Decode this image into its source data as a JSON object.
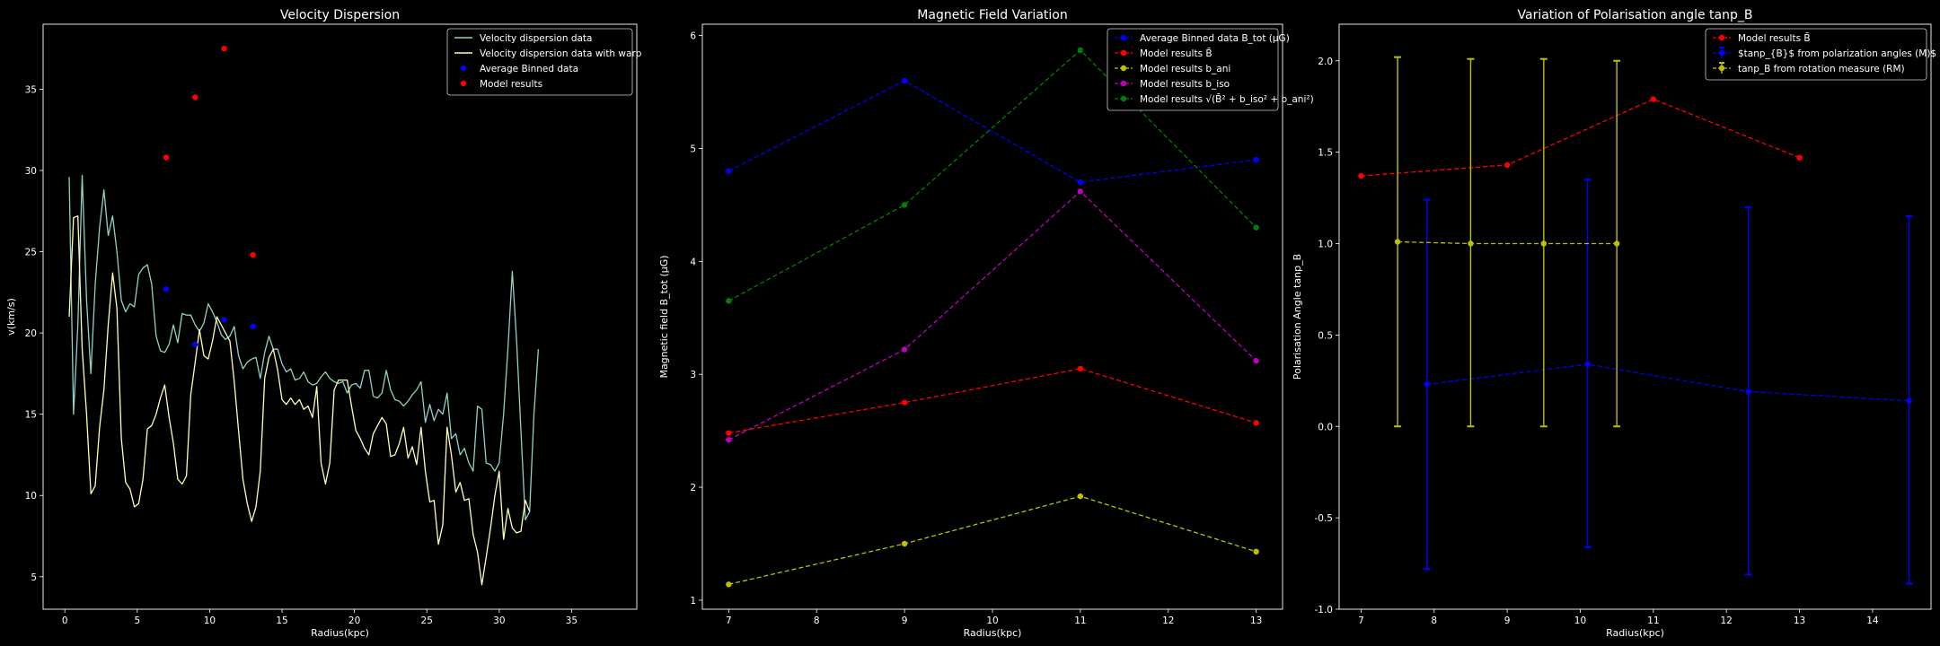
{
  "figure": {
    "background": "#000000",
    "foreground": "#ffffff"
  },
  "chart_data": [
    {
      "type": "line",
      "title": "Velocity Dispersion",
      "xlabel": "Radius(kpc)",
      "ylabel": "v(km/s)",
      "xlim": [
        -1.5,
        39.5
      ],
      "ylim": [
        3,
        39
      ],
      "xticks": [
        0,
        5,
        10,
        15,
        20,
        25,
        30,
        35
      ],
      "yticks": [
        5,
        10,
        15,
        20,
        25,
        30,
        35
      ],
      "legend_position": "top-right",
      "series": [
        {
          "name": "Velocity dispersion data",
          "kind": "line",
          "color": "#8dd3c7",
          "x": [
            0.3,
            0.6,
            0.9,
            1.2,
            1.5,
            1.8,
            2.1,
            2.4,
            2.7,
            3.0,
            3.3,
            3.6,
            3.9,
            4.2,
            4.5,
            4.8,
            5.1,
            5.4,
            5.7,
            6.0,
            6.3,
            6.6,
            6.9,
            7.2,
            7.5,
            7.8,
            8.1,
            8.4,
            8.7,
            9.0,
            9.3,
            9.6,
            9.9,
            10.2,
            10.5,
            10.8,
            11.1,
            11.4,
            11.7,
            12.0,
            12.3,
            12.6,
            12.9,
            13.2,
            13.5,
            13.8,
            14.1,
            14.4,
            14.7,
            15.0,
            15.3,
            15.6,
            15.9,
            16.2,
            16.5,
            16.8,
            17.1,
            17.4,
            17.7,
            18.0,
            18.3,
            18.6,
            18.9,
            19.2,
            19.5,
            19.8,
            20.1,
            20.4,
            20.7,
            21.0,
            21.3,
            21.6,
            21.9,
            22.2,
            22.5,
            22.8,
            23.1,
            23.4,
            23.7,
            24.0,
            24.3,
            24.6,
            24.9,
            25.2,
            25.5,
            25.8,
            26.1,
            26.4,
            26.7,
            27.0,
            27.3,
            27.6,
            27.9,
            28.2,
            28.5,
            28.8,
            29.1,
            29.4,
            29.7,
            30.0,
            30.3,
            30.6,
            30.9,
            31.2,
            31.5,
            31.8,
            32.1,
            32.4,
            32.7,
            33.0,
            33.3,
            33.6,
            33.9,
            34.2,
            34.5,
            34.8,
            35.1,
            35.4,
            35.7,
            36.0,
            36.3,
            36.6,
            36.9,
            37.2,
            37.5,
            37.8
          ],
          "y": [
            29.6,
            15.0,
            20.5,
            29.7,
            22.0,
            17.5,
            23.0,
            26.5,
            28.8,
            26.0,
            27.2,
            25.0,
            22.0,
            21.3,
            21.8,
            21.6,
            23.6,
            24.0,
            24.2,
            23.0,
            19.8,
            18.9,
            18.8,
            19.3,
            20.5,
            19.4,
            21.2,
            21.1,
            21.1,
            20.5,
            20.1,
            20.6,
            21.8,
            21.3,
            20.7,
            19.9,
            19.6,
            19.8,
            20.4,
            18.6,
            17.8,
            18.2,
            18.4,
            18.5,
            17.2,
            18.8,
            19.8,
            19.0,
            19.0,
            18.1,
            17.6,
            17.8,
            17.1,
            17.2,
            17.6,
            17.0,
            16.8,
            16.9,
            17.3,
            17.6,
            17.2,
            17.0,
            16.9,
            17.0,
            16.3,
            16.8,
            16.9,
            16.6,
            17.7,
            17.7,
            16.1,
            16.0,
            16.3,
            17.7,
            16.5,
            15.9,
            15.8,
            15.5,
            15.8,
            16.2,
            16.5,
            17.0,
            14.5,
            15.6,
            14.6,
            15.3,
            15.0,
            16.3,
            13.5,
            13.8,
            12.5,
            12.9,
            12.0,
            11.5,
            15.5,
            15.3,
            12.0,
            11.9,
            11.5,
            12.0,
            15.0,
            19.0,
            23.8,
            19.5,
            14.0,
            8.5,
            9.0,
            15.0,
            19.0,
            null,
            null,
            null,
            null,
            null,
            null,
            null,
            null,
            null,
            null,
            null,
            null,
            null,
            null,
            null,
            null,
            null
          ]
        },
        {
          "name": "Velocity dispersion data with warp",
          "kind": "line",
          "color": "#ffffb3",
          "x": [
            0.3,
            0.6,
            0.9,
            1.2,
            1.5,
            1.8,
            2.1,
            2.4,
            2.7,
            3.0,
            3.3,
            3.6,
            3.9,
            4.2,
            4.5,
            4.8,
            5.1,
            5.4,
            5.7,
            6.0,
            6.3,
            6.6,
            6.9,
            7.2,
            7.5,
            7.8,
            8.1,
            8.4,
            8.7,
            9.0,
            9.3,
            9.6,
            9.9,
            10.2,
            10.5,
            10.8,
            11.1,
            11.4,
            11.7,
            12.0,
            12.3,
            12.6,
            12.9,
            13.2,
            13.5,
            13.8,
            14.1,
            14.4,
            14.7,
            15.0,
            15.3,
            15.6,
            15.9,
            16.2,
            16.5,
            16.8,
            17.1,
            17.4,
            17.7,
            18.0,
            18.3,
            18.6,
            18.9,
            19.2,
            19.5,
            19.8,
            20.1,
            20.4,
            20.7,
            21.0,
            21.3,
            21.6,
            21.9,
            22.2,
            22.5,
            22.8,
            23.1,
            23.4,
            23.7,
            24.0,
            24.3,
            24.6,
            24.9,
            25.2,
            25.5,
            25.8,
            26.1,
            26.4,
            26.7,
            27.0,
            27.3,
            27.6,
            27.9,
            28.2,
            28.5,
            28.8,
            29.1,
            29.4,
            29.7,
            30.0,
            30.3,
            30.6,
            30.9,
            31.2,
            31.5,
            31.8,
            32.1,
            32.4,
            32.7,
            33.0,
            33.3,
            33.6,
            33.9,
            34.2,
            34.5,
            34.8,
            35.1,
            35.4,
            35.7,
            36.0,
            36.3,
            36.6,
            36.9,
            37.2,
            37.5,
            37.8
          ],
          "y": [
            21.0,
            27.1,
            27.2,
            19.0,
            15.0,
            10.1,
            10.6,
            14.2,
            16.5,
            20.5,
            23.7,
            21.5,
            13.5,
            10.8,
            10.4,
            9.3,
            9.5,
            11.0,
            14.1,
            14.3,
            15.0,
            16.0,
            16.8,
            14.8,
            13.2,
            11.0,
            10.7,
            11.2,
            16.2,
            18.2,
            20.2,
            18.6,
            18.4,
            19.5,
            21.0,
            20.5,
            20.0,
            19.5,
            17.0,
            14.0,
            11.0,
            9.5,
            8.4,
            9.3,
            11.5,
            17.2,
            18.5,
            19.0,
            17.7,
            15.9,
            15.6,
            16.0,
            15.6,
            15.9,
            15.3,
            15.5,
            14.8,
            16.7,
            12.0,
            10.7,
            12.0,
            16.5,
            17.1,
            17.1,
            17.1,
            15.5,
            14.0,
            13.5,
            12.9,
            12.5,
            13.8,
            14.3,
            14.8,
            14.4,
            12.4,
            12.5,
            13.2,
            14.2,
            12.3,
            13.0,
            11.9,
            14.2,
            11.5,
            9.6,
            9.7,
            7.0,
            8.2,
            14.2,
            12.5,
            10.2,
            10.8,
            9.7,
            9.8,
            7.6,
            6.5,
            4.5,
            6.2,
            8.0,
            10.0,
            11.5,
            7.3,
            9.2,
            8.0,
            7.7,
            7.8,
            9.7,
            9.0,
            null,
            null,
            null,
            null,
            null,
            null,
            null,
            null,
            null,
            null,
            null,
            null,
            null,
            null,
            null,
            null,
            null,
            null,
            null
          ]
        },
        {
          "name": "Average Binned data",
          "kind": "scatter",
          "color": "#0000ff",
          "x": [
            7,
            9,
            11,
            13
          ],
          "y": [
            22.7,
            19.3,
            20.8,
            20.4
          ]
        },
        {
          "name": "Model results",
          "kind": "scatter",
          "color": "#ff0000",
          "x": [
            7,
            9,
            11,
            13
          ],
          "y": [
            30.8,
            34.5,
            37.5,
            24.8
          ]
        }
      ]
    },
    {
      "type": "line",
      "title": "Magnetic Field Variation",
      "xlabel": "Radius(kpc)",
      "ylabel": "Magnetic field B_tot (μG)",
      "xlim": [
        6.7,
        13.3
      ],
      "ylim": [
        0.92,
        6.1
      ],
      "xticks": [
        7,
        8,
        9,
        10,
        11,
        12,
        13
      ],
      "yticks": [
        1,
        2,
        3,
        4,
        5,
        6
      ],
      "legend_position": "top-right",
      "series": [
        {
          "name": "Average Binned data B_tot (μG)",
          "color": "#0000ff",
          "x": [
            7,
            9,
            11,
            13
          ],
          "y": [
            4.8,
            5.6,
            4.7,
            4.9
          ]
        },
        {
          "name": "Model results B̄",
          "color": "#ff0000",
          "x": [
            7,
            9,
            11,
            13
          ],
          "y": [
            2.48,
            2.75,
            3.05,
            2.57
          ]
        },
        {
          "name": "Model results b_ani",
          "color": "#bfbf00",
          "x": [
            7,
            9,
            11,
            13
          ],
          "y": [
            1.14,
            1.5,
            1.92,
            1.43
          ]
        },
        {
          "name": "Model results b_iso",
          "color": "#bf00bf",
          "x": [
            7,
            9,
            11,
            13
          ],
          "y": [
            2.42,
            3.22,
            4.62,
            3.12
          ]
        },
        {
          "name": "Model results √(B̄² + b_iso² + b_ani²)",
          "color": "#008000",
          "x": [
            7,
            9,
            11,
            13
          ],
          "y": [
            3.65,
            4.5,
            5.87,
            4.3
          ]
        }
      ]
    },
    {
      "type": "line",
      "title": "Variation of Polarisation angle tanp_B",
      "xlabel": "Radius(kpc)",
      "ylabel": "Polarisation Angle tanp_B",
      "xlim": [
        6.7,
        14.8
      ],
      "ylim": [
        -1.0,
        2.2
      ],
      "xticks": [
        7,
        8,
        9,
        10,
        11,
        12,
        13,
        14
      ],
      "yticks": [
        -1.0,
        -0.5,
        0.0,
        0.5,
        1.0,
        1.5,
        2.0
      ],
      "legend_position": "top-right",
      "series": [
        {
          "name": "Model results B̄",
          "color": "#ff0000",
          "x": [
            7,
            9,
            11,
            13
          ],
          "y": [
            1.37,
            1.43,
            1.79,
            1.47
          ]
        },
        {
          "name": "$tanp_{B}$ from polarization angles (M)$",
          "color": "#0000ff",
          "x": [
            7.9,
            10.1,
            12.3,
            14.5
          ],
          "y": [
            0.23,
            0.34,
            0.19,
            0.14
          ],
          "err_low": [
            -0.78,
            -0.66,
            -0.81,
            -0.86
          ],
          "err_high": [
            1.24,
            1.35,
            1.2,
            1.15
          ]
        },
        {
          "name": "tanp_B from rotation measure (RM)",
          "color": "#bfbf00",
          "x": [
            7.5,
            8.5,
            9.5,
            10.5
          ],
          "y": [
            1.01,
            1.0,
            1.0,
            1.0
          ],
          "err_low": [
            0.0,
            0.0,
            0.0,
            0.0
          ],
          "err_high": [
            2.02,
            2.01,
            2.01,
            2.0
          ]
        }
      ]
    }
  ]
}
